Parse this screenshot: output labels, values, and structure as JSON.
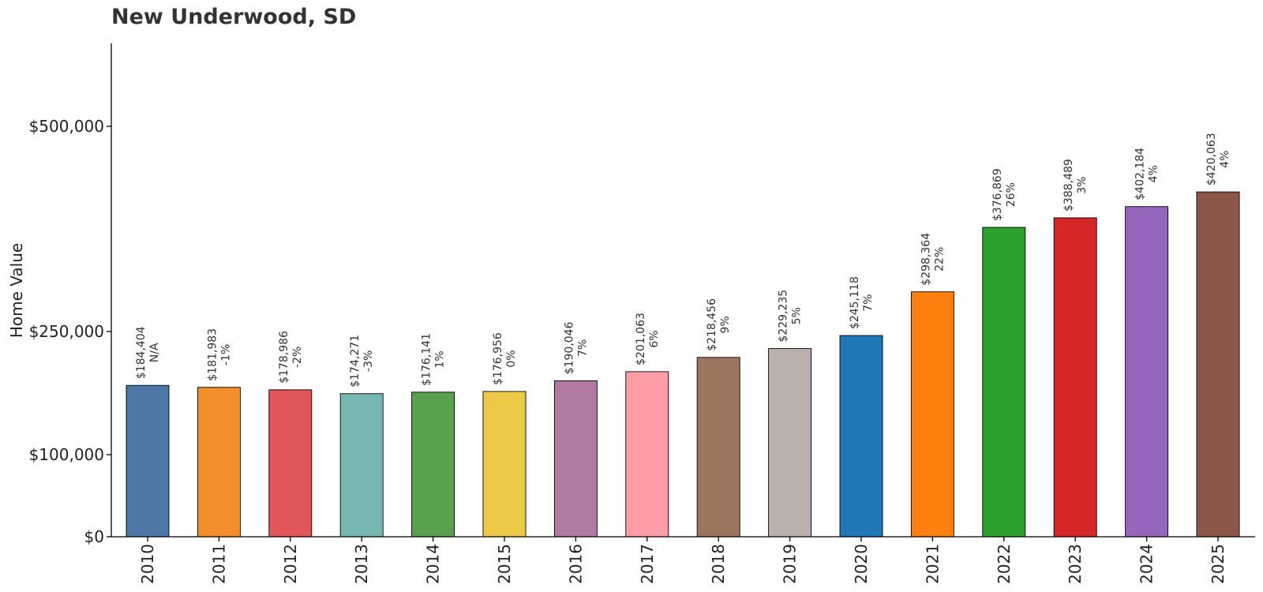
{
  "chart_data": {
    "type": "bar",
    "title": "New Underwood, SD",
    "ylabel": "Home Value",
    "xlabel": "",
    "categories": [
      "2010",
      "2011",
      "2012",
      "2013",
      "2014",
      "2015",
      "2016",
      "2017",
      "2018",
      "2019",
      "2020",
      "2021",
      "2022",
      "2023",
      "2024",
      "2025"
    ],
    "values": [
      184404,
      181983,
      178986,
      174271,
      176141,
      176956,
      190046,
      201063,
      218456,
      229235,
      245118,
      298364,
      376869,
      388489,
      402184,
      420063
    ],
    "value_labels": [
      "$184,404",
      "$181,983",
      "$178,986",
      "$174,271",
      "$176,141",
      "$176,956",
      "$190,046",
      "$201,063",
      "$218,456",
      "$229,235",
      "$245,118",
      "$298,364",
      "$376,869",
      "$388,489",
      "$402,184",
      "$420,063"
    ],
    "change_labels": [
      "N/A",
      "-1%",
      "-2%",
      "-3%",
      "1%",
      "0%",
      "7%",
      "6%",
      "9%",
      "5%",
      "7%",
      "22%",
      "26%",
      "3%",
      "4%",
      "4%"
    ],
    "colors": [
      "#4e79a7",
      "#f28e2b",
      "#e15759",
      "#76b7b2",
      "#59a14f",
      "#edc948",
      "#b07aa1",
      "#ff9da7",
      "#9c755f",
      "#bab0ac",
      "#1f77b4",
      "#ff7f0e",
      "#2ca02c",
      "#d62728",
      "#9467bd",
      "#8c564b"
    ],
    "ylim": [
      0,
      600000
    ],
    "yticks": [
      0,
      100000,
      250000,
      500000
    ],
    "ytick_labels": [
      "$0",
      "$100,000",
      "$250,000",
      "$500,000"
    ],
    "grid": false,
    "legend": "none"
  }
}
